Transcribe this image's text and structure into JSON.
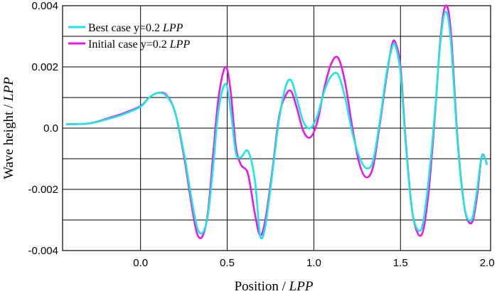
{
  "chart_data": {
    "type": "line",
    "xlabel_main": "Position / ",
    "xlabel_unit": "LPP",
    "ylabel_main": "Wave height / ",
    "ylabel_unit": "LPP",
    "xlim": [
      -0.45,
      2.02
    ],
    "ylim": [
      -0.004,
      0.004
    ],
    "x_ticks": [
      0.0,
      0.5,
      1.0,
      1.5,
      2.0
    ],
    "x_tick_labels": [
      "0.0",
      "0.5",
      "1.0",
      "1.5",
      "2.0"
    ],
    "y_ticks": [
      0.004,
      0.002,
      0.0,
      -0.002,
      -0.004
    ],
    "y_tick_labels": [
      "0.004",
      "0.002",
      "0.0",
      "-0.002",
      "-0.004"
    ],
    "grid_y": [
      0.003,
      0.002,
      0.001,
      0.0,
      -0.001,
      -0.002,
      -0.003
    ],
    "grid_x": [
      0.0,
      0.5,
      1.0,
      1.5
    ],
    "legend_position": "top-left",
    "series": [
      {
        "name": "Best case y=0.2",
        "name_unit": "LPP",
        "color": "#19e6e6",
        "x": [
          -0.43,
          -0.3,
          -0.2,
          -0.1,
          0.0,
          0.05,
          0.1,
          0.15,
          0.2,
          0.25,
          0.3,
          0.33,
          0.36,
          0.39,
          0.42,
          0.45,
          0.49,
          0.52,
          0.55,
          0.58,
          0.62,
          0.66,
          0.69,
          0.72,
          0.76,
          0.8,
          0.84,
          0.87,
          0.9,
          0.94,
          0.98,
          1.02,
          1.06,
          1.1,
          1.14,
          1.18,
          1.22,
          1.26,
          1.3,
          1.34,
          1.38,
          1.42,
          1.45,
          1.47,
          1.5,
          1.53,
          1.57,
          1.62,
          1.66,
          1.7,
          1.73,
          1.76,
          1.79,
          1.83,
          1.87,
          1.91,
          1.94,
          1.97,
          2.0
        ],
        "y": [
          0.00013,
          0.00015,
          0.00028,
          0.00045,
          0.0007,
          0.001,
          0.00115,
          0.00105,
          0.0005,
          -0.0008,
          -0.0025,
          -0.0033,
          -0.0034,
          -0.0028,
          -0.0012,
          0.0006,
          0.00145,
          0.0006,
          -0.0008,
          -0.00095,
          -0.00075,
          -0.0017,
          -0.0035,
          -0.0032,
          -0.0015,
          0.0003,
          0.0014,
          0.00155,
          0.001,
          0.0002,
          0.0,
          0.0004,
          0.0012,
          0.0017,
          0.00175,
          0.001,
          -0.0001,
          -0.0009,
          -0.0013,
          -0.0011,
          0.0002,
          0.0018,
          0.0026,
          0.0027,
          0.0018,
          -0.0005,
          -0.0028,
          -0.0033,
          -0.0018,
          0.0006,
          0.0028,
          0.0038,
          0.0029,
          -0.0005,
          -0.0026,
          -0.003,
          -0.0021,
          -0.0009,
          -0.0012
        ]
      },
      {
        "name": "Initial case y=0.2",
        "name_unit": "LPP",
        "color": "#e619e6",
        "x": [
          -0.43,
          -0.3,
          -0.2,
          -0.1,
          0.0,
          0.05,
          0.1,
          0.15,
          0.2,
          0.25,
          0.3,
          0.33,
          0.36,
          0.39,
          0.42,
          0.45,
          0.49,
          0.52,
          0.55,
          0.58,
          0.62,
          0.66,
          0.69,
          0.72,
          0.76,
          0.8,
          0.84,
          0.87,
          0.9,
          0.94,
          0.98,
          1.02,
          1.06,
          1.1,
          1.14,
          1.18,
          1.22,
          1.26,
          1.3,
          1.34,
          1.38,
          1.42,
          1.45,
          1.47,
          1.5,
          1.53,
          1.57,
          1.62,
          1.66,
          1.7,
          1.73,
          1.76,
          1.79,
          1.83,
          1.87,
          1.91,
          1.94,
          1.97,
          2.0
        ],
        "y": [
          0.00013,
          0.00015,
          0.0003,
          0.00048,
          0.00072,
          0.001,
          0.00115,
          0.00108,
          0.0005,
          -0.0009,
          -0.0027,
          -0.0035,
          -0.0035,
          -0.0027,
          -0.0008,
          0.001,
          0.002,
          0.0012,
          -0.0006,
          -0.0012,
          -0.0015,
          -0.0028,
          -0.0035,
          -0.003,
          -0.0014,
          0.0004,
          0.0011,
          0.0012,
          0.0007,
          -0.0001,
          -0.0003,
          0.0002,
          0.0013,
          0.0021,
          0.0023,
          0.0015,
          0.0001,
          -0.0011,
          -0.0016,
          -0.0013,
          0.0001,
          0.0017,
          0.0027,
          0.0028,
          0.002,
          -0.0004,
          -0.0028,
          -0.0035,
          -0.0022,
          0.0005,
          0.0029,
          0.004,
          0.0032,
          -0.0004,
          -0.0026,
          -0.0031,
          -0.0023,
          -0.0009,
          -0.0012
        ]
      }
    ]
  }
}
